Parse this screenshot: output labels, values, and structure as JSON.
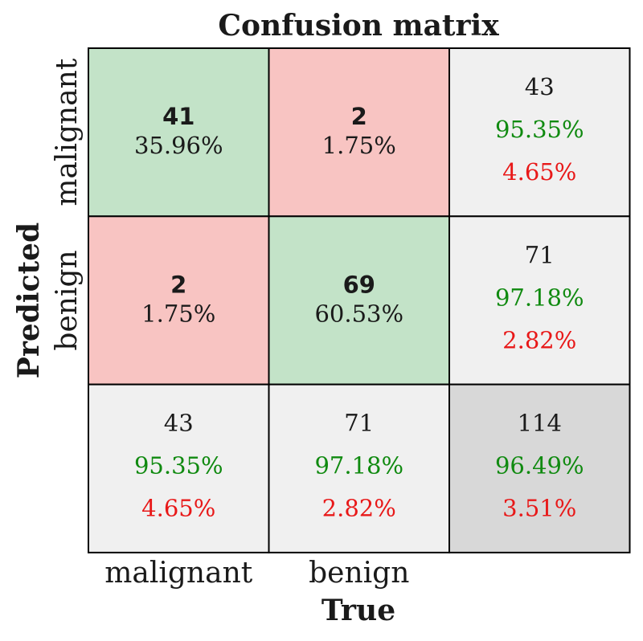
{
  "chart_data": {
    "type": "heatmap",
    "title": "Confusion matrix",
    "xlabel": "True",
    "ylabel": "Predicted",
    "x_tick_labels": [
      "malignant",
      "benign"
    ],
    "y_tick_labels": [
      "malignant",
      "benign"
    ],
    "matrix": [
      {
        "row": "malignant",
        "cells": [
          {
            "count": "41",
            "percent": "35.96%",
            "kind": "correct"
          },
          {
            "count": "2",
            "percent": "1.75%",
            "kind": "error"
          }
        ],
        "total": {
          "count": "43",
          "good": "95.35%",
          "bad": "4.65%"
        }
      },
      {
        "row": "benign",
        "cells": [
          {
            "count": "2",
            "percent": "1.75%",
            "kind": "error"
          },
          {
            "count": "69",
            "percent": "60.53%",
            "kind": "correct"
          }
        ],
        "total": {
          "count": "71",
          "good": "97.18%",
          "bad": "2.82%"
        }
      }
    ],
    "column_totals": [
      {
        "count": "43",
        "good": "95.35%",
        "bad": "4.65%"
      },
      {
        "count": "71",
        "good": "97.18%",
        "bad": "2.82%"
      }
    ],
    "overall": {
      "count": "114",
      "good": "96.49%",
      "bad": "3.51%"
    },
    "colors": {
      "correct": "#c3e3c8",
      "error": "#f8c4c2",
      "summary": "#f0f0f0",
      "overall": "#d8d8d8",
      "good_text": "#108a10",
      "bad_text": "#e81818",
      "grid": "#000000",
      "text": "#1a1a1a"
    }
  }
}
